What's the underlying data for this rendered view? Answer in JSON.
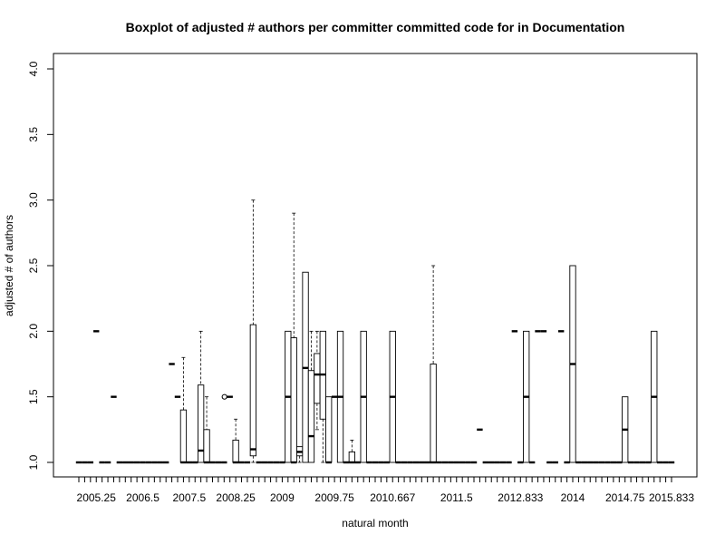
{
  "chart_data": {
    "type": "boxplot",
    "title": "Boxplot of adjusted # authors per committer committed code for in Documentation",
    "xlabel": "natural month",
    "ylabel": "adjusted # of authors",
    "ylim": [
      1.0,
      4.0
    ],
    "y_ticks": [
      "1.0",
      "1.5",
      "2.0",
      "2.5",
      "3.0",
      "3.5",
      "4.0"
    ],
    "x_ticks": [
      "2005.25",
      "2006.5",
      "2007.5",
      "2008.25",
      "2009",
      "2009.75",
      "2010.667",
      "2011.5",
      "2012.833",
      "2014",
      "2014.75",
      "2015.833"
    ],
    "grid": false,
    "legend": "none",
    "boxes": [
      {
        "x": 1,
        "med": 1.0
      },
      {
        "x": 2,
        "med": 1.0
      },
      {
        "x": 3,
        "med": 1.0
      },
      {
        "x": 4,
        "med": 2.0
      },
      {
        "x": 5,
        "med": 1.0
      },
      {
        "x": 6,
        "med": 1.0
      },
      {
        "x": 7,
        "med": 1.5
      },
      {
        "x": 8,
        "med": 1.0
      },
      {
        "x": 9,
        "med": 1.0
      },
      {
        "x": 10,
        "med": 1.0
      },
      {
        "x": 11,
        "med": 1.0
      },
      {
        "x": 12,
        "med": 1.0
      },
      {
        "x": 13,
        "med": 1.0
      },
      {
        "x": 14,
        "med": 1.0
      },
      {
        "x": 15,
        "med": 1.0
      },
      {
        "x": 16,
        "med": 1.0
      },
      {
        "x": 17,
        "med": 1.75
      },
      {
        "x": 18,
        "med": 1.5
      },
      {
        "x": 19,
        "q1": 1.0,
        "med": 1.0,
        "q3": 1.4,
        "lo": 1.0,
        "hi": 1.8
      },
      {
        "x": 20,
        "med": 1.0
      },
      {
        "x": 21,
        "med": 1.0
      },
      {
        "x": 22,
        "q1": 1.0,
        "med": 1.09,
        "q3": 1.59,
        "lo": 1.0,
        "hi": 2.0
      },
      {
        "x": 23,
        "q1": 1.0,
        "med": 1.0,
        "q3": 1.25,
        "lo": 1.0,
        "hi": 1.5
      },
      {
        "x": 24,
        "med": 1.0
      },
      {
        "x": 25,
        "med": 1.0
      },
      {
        "x": 26,
        "med": 1.0
      },
      {
        "x": 27,
        "med": 1.5,
        "outliers": [
          1.5
        ]
      },
      {
        "x": 28,
        "q1": 1.0,
        "med": 1.0,
        "q3": 1.17,
        "lo": 1.0,
        "hi": 1.33
      },
      {
        "x": 29,
        "med": 1.0
      },
      {
        "x": 30,
        "med": 1.0
      },
      {
        "x": 31,
        "q1": 1.05,
        "med": 1.1,
        "q3": 2.05,
        "lo": 1.0,
        "hi": 3.0
      },
      {
        "x": 32,
        "med": 1.0
      },
      {
        "x": 33,
        "med": 1.0
      },
      {
        "x": 34,
        "med": 1.0
      },
      {
        "x": 35,
        "med": 1.0
      },
      {
        "x": 36,
        "med": 1.0
      },
      {
        "x": 37,
        "q1": 1.0,
        "med": 1.5,
        "q3": 2.0,
        "lo": 1.0,
        "hi": 2.0
      },
      {
        "x": 38,
        "q1": 1.0,
        "med": 1.0,
        "q3": 1.95,
        "lo": 1.0,
        "hi": 2.9
      },
      {
        "x": 39,
        "q1": 1.05,
        "med": 1.08,
        "q3": 1.12,
        "lo": 1.0,
        "hi": 1.12
      },
      {
        "x": 40,
        "q1": 1.0,
        "med": 1.72,
        "q3": 2.45,
        "lo": 1.0,
        "hi": 2.45
      },
      {
        "x": 41,
        "q1": 1.0,
        "med": 1.2,
        "q3": 1.7,
        "lo": 1.0,
        "hi": 2.0
      },
      {
        "x": 42,
        "q1": 1.45,
        "med": 1.67,
        "q3": 1.83,
        "lo": 1.25,
        "hi": 2.0
      },
      {
        "x": 43,
        "q1": 1.33,
        "med": 1.67,
        "q3": 2.0,
        "lo": 1.0,
        "hi": 2.0
      },
      {
        "x": 44,
        "q1": 1.0,
        "med": 1.0,
        "q3": 1.5,
        "lo": 1.0,
        "hi": 1.5
      },
      {
        "x": 45,
        "med": 1.5
      },
      {
        "x": 46,
        "q1": 1.0,
        "med": 1.5,
        "q3": 2.0,
        "lo": 1.0,
        "hi": 2.0
      },
      {
        "x": 47,
        "med": 1.0
      },
      {
        "x": 48,
        "q1": 1.0,
        "med": 1.0,
        "q3": 1.08,
        "lo": 1.0,
        "hi": 1.17
      },
      {
        "x": 49,
        "med": 1.0
      },
      {
        "x": 50,
        "q1": 1.0,
        "med": 1.5,
        "q3": 2.0,
        "lo": 1.0,
        "hi": 2.0
      },
      {
        "x": 51,
        "med": 1.0
      },
      {
        "x": 52,
        "med": 1.0
      },
      {
        "x": 53,
        "med": 1.0
      },
      {
        "x": 54,
        "med": 1.0
      },
      {
        "x": 55,
        "q1": 1.0,
        "med": 1.5,
        "q3": 2.0,
        "lo": 1.0,
        "hi": 2.0
      },
      {
        "x": 56,
        "med": 1.0
      },
      {
        "x": 57,
        "med": 1.0
      },
      {
        "x": 58,
        "med": 1.0
      },
      {
        "x": 59,
        "med": 1.0
      },
      {
        "x": 60,
        "med": 1.0
      },
      {
        "x": 61,
        "med": 1.0
      },
      {
        "x": 62,
        "q1": 1.0,
        "med": 1.0,
        "q3": 1.75,
        "lo": 1.0,
        "hi": 2.5
      },
      {
        "x": 63,
        "med": 1.0
      },
      {
        "x": 64,
        "med": 1.0
      },
      {
        "x": 65,
        "med": 1.0
      },
      {
        "x": 66,
        "med": 1.0
      },
      {
        "x": 67,
        "med": 1.0
      },
      {
        "x": 68,
        "med": 1.0
      },
      {
        "x": 69,
        "med": 1.0
      },
      {
        "x": 70,
        "med": 1.25
      },
      {
        "x": 71,
        "med": 1.0
      },
      {
        "x": 72,
        "med": 1.0
      },
      {
        "x": 73,
        "med": 1.0
      },
      {
        "x": 74,
        "med": 1.0
      },
      {
        "x": 75,
        "med": 1.0
      },
      {
        "x": 76,
        "med": 2.0
      },
      {
        "x": 77,
        "med": 1.0
      },
      {
        "x": 78,
        "q1": 1.0,
        "med": 1.5,
        "q3": 2.0,
        "lo": 1.0,
        "hi": 2.0
      },
      {
        "x": 79,
        "med": 1.0
      },
      {
        "x": 80,
        "med": 2.0
      },
      {
        "x": 81,
        "med": 2.0
      },
      {
        "x": 82,
        "med": 1.0
      },
      {
        "x": 83,
        "med": 1.0
      },
      {
        "x": 84,
        "med": 2.0
      },
      {
        "x": 85,
        "med": 1.0
      },
      {
        "x": 86,
        "q1": 1.0,
        "med": 1.75,
        "q3": 2.5,
        "lo": 1.0,
        "hi": 2.5
      },
      {
        "x": 87,
        "med": 1.0
      },
      {
        "x": 88,
        "med": 1.0
      },
      {
        "x": 89,
        "med": 1.0
      },
      {
        "x": 90,
        "med": 1.0
      },
      {
        "x": 91,
        "med": 1.0
      },
      {
        "x": 92,
        "med": 1.0
      },
      {
        "x": 93,
        "med": 1.0
      },
      {
        "x": 94,
        "med": 1.0
      },
      {
        "x": 95,
        "q1": 1.0,
        "med": 1.25,
        "q3": 1.5,
        "lo": 1.0,
        "hi": 1.5
      },
      {
        "x": 96,
        "med": 1.0
      },
      {
        "x": 97,
        "med": 1.0
      },
      {
        "x": 98,
        "med": 1.0
      },
      {
        "x": 99,
        "med": 1.0
      },
      {
        "x": 100,
        "q1": 1.0,
        "med": 1.5,
        "q3": 2.0,
        "lo": 1.0,
        "hi": 2.0
      },
      {
        "x": 101,
        "med": 1.0
      },
      {
        "x": 102,
        "med": 1.0
      },
      {
        "x": 103,
        "med": 1.0
      }
    ]
  }
}
